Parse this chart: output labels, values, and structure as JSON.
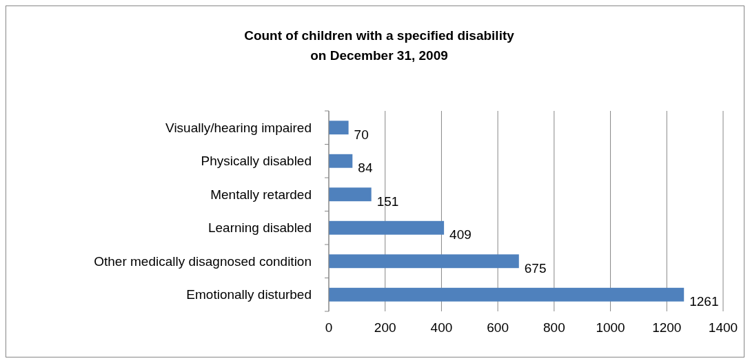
{
  "chart_data": {
    "type": "bar",
    "title": "Count of children with a specified disability\non December 31, 2009",
    "orientation": "horizontal",
    "categories": [
      "Visually/hearing impaired",
      "Physically disabled",
      "Mentally retarded",
      "Learning disabled",
      "Other medically disagnosed condition",
      "Emotionally disturbed"
    ],
    "values": [
      70,
      84,
      151,
      409,
      675,
      1261
    ],
    "color": "#4f81bd",
    "data_labels": true,
    "xlim": [
      0,
      1400
    ],
    "xticks": [
      0,
      200,
      400,
      600,
      800,
      1000,
      1200,
      1400
    ],
    "grid": "x"
  }
}
